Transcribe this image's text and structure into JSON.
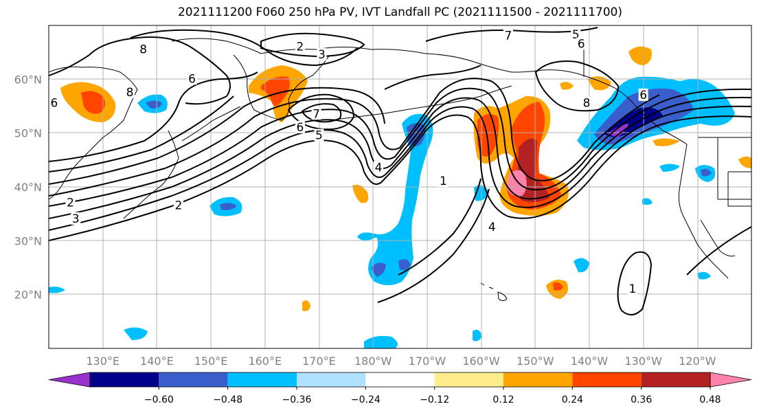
{
  "title": "2021111200 F060 250 hPa PV, IVT Landfall PC (2021111500 - 2021111700)",
  "chart_data": {
    "type": "map",
    "projection": "PlateCarree",
    "extent_lon": [
      120,
      250
    ],
    "extent_lat": [
      10,
      70
    ],
    "grid": true,
    "lat_ticks": [
      {
        "value": 20,
        "label": "20°N"
      },
      {
        "value": 30,
        "label": "30°N"
      },
      {
        "value": 40,
        "label": "40°N"
      },
      {
        "value": 50,
        "label": "50°N"
      },
      {
        "value": 60,
        "label": "60°N"
      }
    ],
    "lon_ticks": [
      {
        "value": 130,
        "label": "130°E"
      },
      {
        "value": 140,
        "label": "140°E"
      },
      {
        "value": 150,
        "label": "150°E"
      },
      {
        "value": 160,
        "label": "160°E"
      },
      {
        "value": 170,
        "label": "170°E"
      },
      {
        "value": 180,
        "label": "180°W"
      },
      {
        "value": 190,
        "label": "170°W"
      },
      {
        "value": 200,
        "label": "160°W"
      },
      {
        "value": 210,
        "label": "150°W"
      },
      {
        "value": 220,
        "label": "140°W"
      },
      {
        "value": 230,
        "label": "130°W"
      },
      {
        "value": 240,
        "label": "120°W"
      }
    ],
    "colorbar": {
      "boundaries": [
        -0.6,
        -0.48,
        -0.36,
        -0.24,
        -0.12,
        0.12,
        0.24,
        0.36,
        0.48,
        0.6
      ],
      "tick_labels": [
        "−0.60",
        "−0.48",
        "−0.36",
        "−0.24",
        "−0.12",
        "0.12",
        "0.24",
        "0.36",
        "0.48",
        "0.60"
      ],
      "colors": [
        "#9932cc",
        "#00008b",
        "#3a5fcd",
        "#00bfff",
        "#b0e2ff",
        "#ffffff",
        "#ffec8b",
        "#ffa500",
        "#ff4500",
        "#b22222",
        "#ff82ab"
      ],
      "extend": "both"
    },
    "contour_labels": [
      {
        "text": "8",
        "lon": 137.5,
        "lat": 65.5
      },
      {
        "text": "2",
        "lon": 166.5,
        "lat": 66
      },
      {
        "text": "3",
        "lon": 170.5,
        "lat": 64.5
      },
      {
        "text": "7",
        "lon": 205,
        "lat": 68
      },
      {
        "text": "5",
        "lon": 217.5,
        "lat": 68.2
      },
      {
        "text": "6",
        "lon": 218.5,
        "lat": 66.5
      },
      {
        "text": "6",
        "lon": 146.5,
        "lat": 60
      },
      {
        "text": "8",
        "lon": 135,
        "lat": 57.5
      },
      {
        "text": "6",
        "lon": 121,
        "lat": 55.5
      },
      {
        "text": "7",
        "lon": 169.5,
        "lat": 53.5
      },
      {
        "text": "6",
        "lon": 166.5,
        "lat": 51
      },
      {
        "text": "5",
        "lon": 170,
        "lat": 49.5
      },
      {
        "text": "4",
        "lon": 181,
        "lat": 43.5
      },
      {
        "text": "8",
        "lon": 219.5,
        "lat": 55.5
      },
      {
        "text": "6",
        "lon": 230,
        "lat": 57
      },
      {
        "text": "1",
        "lon": 193,
        "lat": 41
      },
      {
        "text": "4",
        "lon": 202,
        "lat": 32.5
      },
      {
        "text": "2",
        "lon": 124,
        "lat": 37
      },
      {
        "text": "2",
        "lon": 144,
        "lat": 36.5
      },
      {
        "text": "3",
        "lon": 125,
        "lat": 34
      },
      {
        "text": "1",
        "lon": 228,
        "lat": 21
      }
    ]
  }
}
